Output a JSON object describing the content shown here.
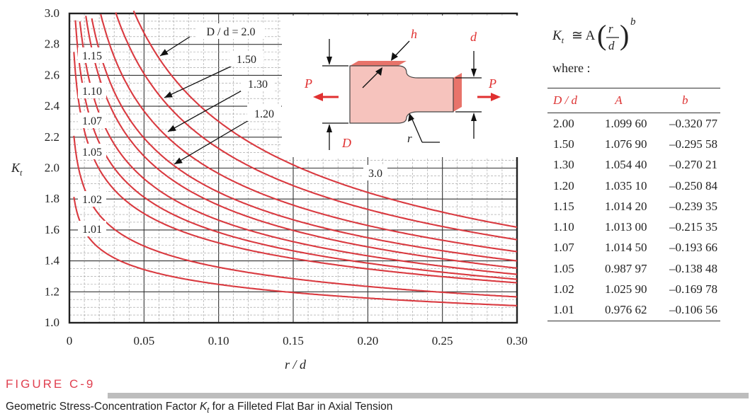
{
  "chart_data": {
    "type": "line",
    "xlabel": "r / d",
    "ylabel": "K",
    "ylabel_sub": "t",
    "xlim": [
      0,
      0.3
    ],
    "ylim": [
      1.0,
      3.0
    ],
    "x_ticks": [
      "0",
      "0.05",
      "0.10",
      "0.15",
      "0.20",
      "0.25",
      "0.30"
    ],
    "y_ticks": [
      "1.0",
      "1.2",
      "1.4",
      "1.6",
      "1.8",
      "2.0",
      "2.2",
      "2.4",
      "2.6",
      "2.8",
      "3.0"
    ],
    "grid": "major and minor",
    "series": [
      {
        "name": "D / d = 2.0",
        "A": 1.0996,
        "b": -0.32077
      },
      {
        "name": "1.50",
        "A": 1.0769,
        "b": -0.29558
      },
      {
        "name": "1.30",
        "A": 1.0544,
        "b": -0.27021
      },
      {
        "name": "1.20",
        "A": 1.0351,
        "b": -0.25084
      },
      {
        "name": "1.15",
        "A": 1.0142,
        "b": -0.23935
      },
      {
        "name": "1.10",
        "A": 1.013,
        "b": -0.21535
      },
      {
        "name": "1.07",
        "A": 1.0145,
        "b": -0.19366
      },
      {
        "name": "1.05",
        "A": 0.98797,
        "b": -0.13848
      },
      {
        "name": "1.02",
        "A": 1.0259,
        "b": -0.16978
      },
      {
        "name": "1.01",
        "A": 0.97662,
        "b": -0.10656
      }
    ],
    "annotations": [
      "3.0"
    ],
    "color": "#d93a40"
  },
  "diagram": {
    "labels": {
      "h": "h",
      "d": "d",
      "D": "D",
      "r": "r",
      "P_left": "P",
      "P_right": "P"
    },
    "fill": "#f6c3bd",
    "edge": "#e8736a",
    "arrow_color": "#e03030"
  },
  "formula": {
    "lhs": "K",
    "lhs_sub": "t",
    "approx": "≅ A",
    "num": "r",
    "den": "d",
    "exp": "b"
  },
  "where": "where :",
  "table": {
    "headers": [
      "D / d",
      "A",
      "b"
    ],
    "rows": [
      [
        "2.00",
        "1.099 60",
        "–0.320 77"
      ],
      [
        "1.50",
        "1.076 90",
        "–0.295 58"
      ],
      [
        "1.30",
        "1.054 40",
        "–0.270 21"
      ],
      [
        "1.20",
        "1.035 10",
        "–0.250 84"
      ],
      [
        "1.15",
        "1.014 20",
        "–0.239 35"
      ],
      [
        "1.10",
        "1.013 00",
        "–0.215 35"
      ],
      [
        "1.07",
        "1.014 50",
        "–0.193 66"
      ],
      [
        "1.05",
        "0.987 97",
        "–0.138 48"
      ],
      [
        "1.02",
        "1.025 90",
        "–0.169 78"
      ],
      [
        "1.01",
        "0.976 62",
        "–0.106 56"
      ]
    ]
  },
  "figure": {
    "label": "FIGURE C-9",
    "caption_pre": "Geometric Stress-Concentration Factor ",
    "caption_k": "K",
    "caption_sub": "t",
    "caption_post": " for a Filleted Flat Bar in Axial Tension"
  }
}
